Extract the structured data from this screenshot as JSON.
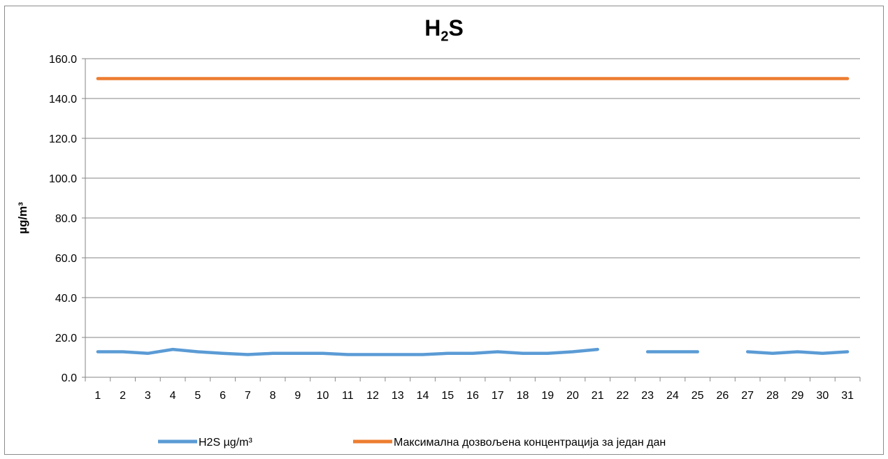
{
  "chart_data": {
    "type": "line",
    "title_main": "H",
    "title_sub": "2",
    "title_end": "S",
    "ylabel": "µg/m³",
    "xlabel": "",
    "ylim": [
      0,
      160
    ],
    "yticks": [
      "0.0",
      "20.0",
      "40.0",
      "60.0",
      "80.0",
      "100.0",
      "120.0",
      "140.0",
      "160.0"
    ],
    "ytick_values": [
      0,
      20,
      40,
      60,
      80,
      100,
      120,
      140,
      160
    ],
    "categories": [
      "1",
      "2",
      "3",
      "4",
      "5",
      "6",
      "7",
      "8",
      "9",
      "10",
      "11",
      "12",
      "13",
      "14",
      "15",
      "16",
      "17",
      "18",
      "19",
      "20",
      "21",
      "22",
      "23",
      "24",
      "25",
      "26",
      "27",
      "28",
      "29",
      "30",
      "31"
    ],
    "grid": true,
    "legend_position": "bottom",
    "series": [
      {
        "name": "H2S µg/m³",
        "color": "#5b9bd5",
        "values": [
          12.8,
          12.8,
          12.0,
          14.0,
          12.8,
          12.0,
          11.4,
          12.0,
          12.0,
          12.0,
          11.4,
          11.4,
          11.4,
          11.4,
          12.0,
          12.0,
          12.8,
          12.0,
          12.0,
          12.8,
          14.0,
          null,
          12.8,
          12.8,
          12.8,
          null,
          12.8,
          12.0,
          12.8,
          12.0,
          12.8
        ]
      },
      {
        "name": "Максимална дозвољена концентрација за један дан",
        "color": "#ed7d31",
        "values": [
          150,
          150,
          150,
          150,
          150,
          150,
          150,
          150,
          150,
          150,
          150,
          150,
          150,
          150,
          150,
          150,
          150,
          150,
          150,
          150,
          150,
          150,
          150,
          150,
          150,
          150,
          150,
          150,
          150,
          150,
          150
        ]
      }
    ]
  }
}
